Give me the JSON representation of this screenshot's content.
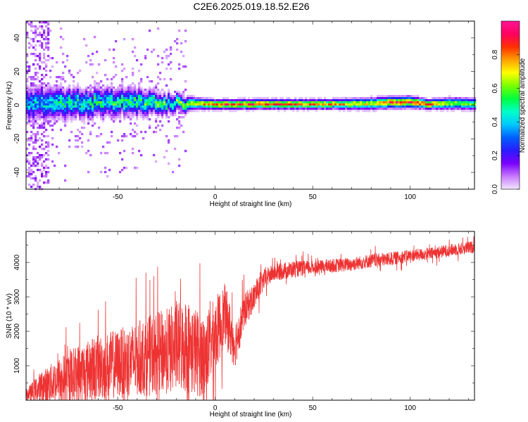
{
  "chart_data": [
    {
      "type": "heatmap",
      "title": "C2E6.2025.019.18.52.E26",
      "xlabel": "Height of straight line (km)",
      "ylabel": "Frequency (Hz)",
      "xlim": [
        -97,
        133
      ],
      "ylim": [
        -50,
        50
      ],
      "x_ticks": [
        -50,
        0,
        50,
        100
      ],
      "y_ticks": [
        -40,
        -20,
        0,
        20,
        40
      ],
      "colorbar": {
        "label": "Normalized spectral amplitude",
        "range": [
          0,
          1
        ],
        "ticks": [
          0.0,
          0.2,
          0.4,
          0.6,
          0.8
        ],
        "colormap": [
          "#f2e6ff",
          "#c87aff",
          "#7a00ff",
          "#2a1cff",
          "#0060ff",
          "#00c8ff",
          "#00ffc8",
          "#00ff40",
          "#7aff00",
          "#ffff00",
          "#ffa000",
          "#ff3000",
          "#ff0060",
          "#ff1493"
        ]
      },
      "ridge_profile": {
        "x": [
          -97,
          -80,
          -60,
          -40,
          -25,
          -15,
          -10,
          0,
          20,
          40,
          60,
          80,
          90,
          100,
          110,
          120,
          133
        ],
        "center_freq": [
          1.0,
          0.8,
          1.2,
          2.5,
          1.0,
          0.8,
          1.0,
          0.5,
          0.5,
          0.5,
          0.6,
          0.8,
          1.5,
          1.8,
          0.5,
          1.0,
          0.8
        ],
        "band_halfwidth": [
          8,
          8,
          7,
          7,
          5,
          4,
          3,
          2.5,
          2.5,
          2.5,
          2.5,
          3,
          3,
          3,
          2.5,
          3,
          3
        ],
        "peak_amplitude": [
          0.45,
          0.5,
          0.55,
          0.55,
          0.6,
          0.6,
          0.7,
          0.85,
          0.9,
          0.85,
          0.8,
          0.7,
          0.9,
          0.9,
          0.85,
          0.65,
          0.6
        ]
      }
    },
    {
      "type": "line",
      "title": "",
      "xlabel": "Height of straight line (km)",
      "ylabel": "SNR (10 * v/v)",
      "xlim": [
        -97,
        133
      ],
      "ylim": [
        0,
        4900
      ],
      "x_ticks": [
        -50,
        0,
        50,
        100
      ],
      "y_ticks": [
        1000,
        2000,
        3000,
        4000
      ],
      "series": [
        {
          "color": "#ee3333",
          "envelope_x": [
            -97,
            -90,
            -80,
            -70,
            -60,
            -50,
            -40,
            -30,
            -20,
            -15,
            -10,
            -5,
            0,
            5,
            10,
            15,
            20,
            25,
            30,
            40,
            50,
            60,
            70,
            80,
            90,
            100,
            110,
            120,
            133
          ],
          "envelope_mean": [
            150,
            350,
            600,
            800,
            950,
            1050,
            1200,
            1350,
            1500,
            1600,
            1400,
            1300,
            1900,
            2500,
            1600,
            2600,
            3000,
            3500,
            3700,
            3800,
            3850,
            3900,
            3950,
            4050,
            4100,
            4200,
            4250,
            4350,
            4450
          ],
          "envelope_spread": [
            150,
            450,
            650,
            850,
            950,
            1000,
            1100,
            1200,
            1300,
            1400,
            1300,
            1200,
            1100,
            900,
            700,
            500,
            400,
            300,
            250,
            250,
            200,
            200,
            200,
            200,
            200,
            180,
            180,
            180,
            180
          ]
        }
      ]
    }
  ]
}
